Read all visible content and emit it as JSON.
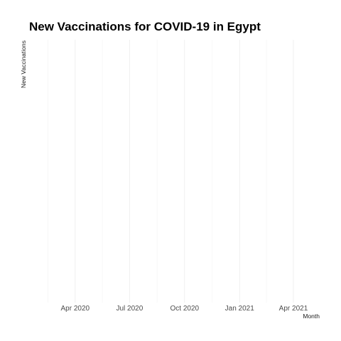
{
  "chart_data": {
    "type": "bar",
    "title": "New Vaccinations for COVID-19 in Egypt",
    "xlabel": "Month",
    "ylabel": "New Vaccinations",
    "x_ticks": [
      "Apr 2020",
      "Jul 2020",
      "Oct 2020",
      "Jan 2021",
      "Apr 2021"
    ],
    "x_tick_dates": [
      "2020-04-01",
      "2020-07-01",
      "2020-10-01",
      "2021-01-01",
      "2021-04-01"
    ],
    "xlim": [
      "2020-01-15",
      "2021-05-15"
    ],
    "categories": [],
    "values": [],
    "grid": true,
    "colors": {
      "title": "#000000",
      "tick_label": "#4d4d4d",
      "grid_major": "#ebebeb",
      "grid_minor": "#f2f2f2"
    }
  }
}
